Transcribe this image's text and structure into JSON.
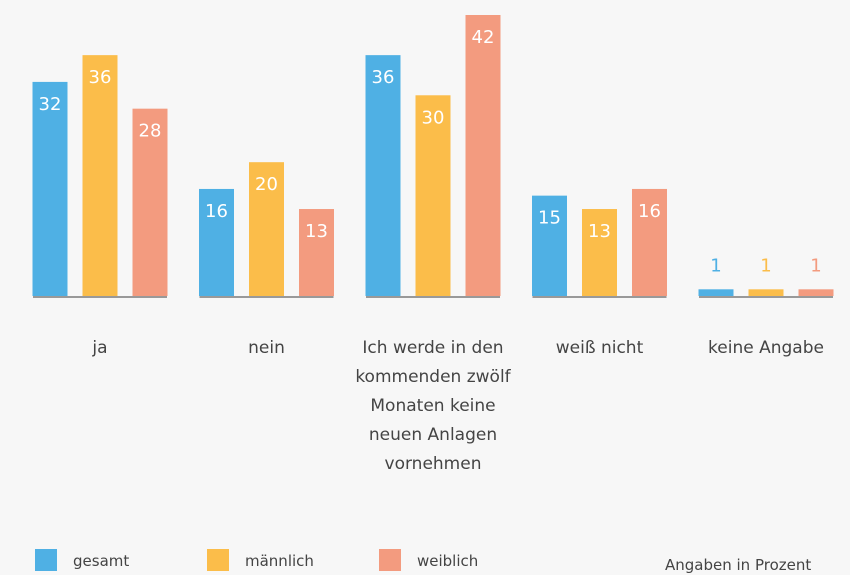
{
  "chart_data": {
    "type": "bar",
    "categories": [
      "ja",
      "nein",
      "Ich werde in den kommenden zwölf Monaten keine neuen Anlagen vornehmen",
      "weiß nicht",
      "keine Angabe"
    ],
    "series": [
      {
        "name": "gesamt",
        "color": "#4fb0e4",
        "values": [
          32,
          16,
          36,
          15,
          1
        ]
      },
      {
        "name": "männlich",
        "color": "#fbbd4a",
        "values": [
          36,
          20,
          30,
          13,
          1
        ]
      },
      {
        "name": "weiblich",
        "color": "#f39b7f",
        "values": [
          28,
          13,
          42,
          16,
          1
        ]
      }
    ],
    "note": "Angaben in Prozent"
  }
}
